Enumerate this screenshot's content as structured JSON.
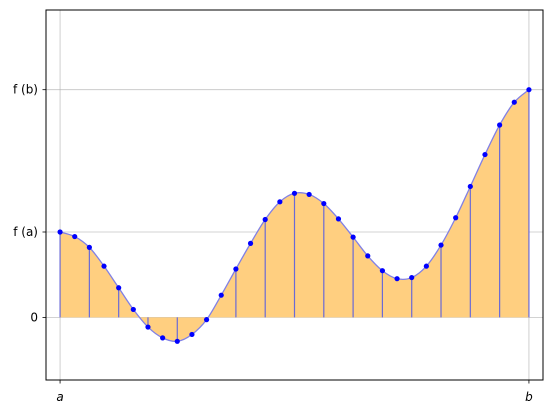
{
  "chart_data": {
    "type": "area",
    "title": "",
    "xlabel": "",
    "ylabel": "",
    "x_ticks": [
      {
        "value": 0,
        "label": "a"
      },
      {
        "value": 1,
        "label": "b"
      }
    ],
    "y_ticks": [
      {
        "value": 0,
        "label": "0"
      },
      {
        "value": 1.5,
        "label": "f (a)"
      },
      {
        "value": 4,
        "label": "f (b)"
      }
    ],
    "xlim": [
      -0.03,
      1.03
    ],
    "ylim": [
      -1.1,
      5.4
    ],
    "grid": true,
    "fill_color": "#ffcf80",
    "curve_color": "#8080e6",
    "stem_color": "#6a6ad6",
    "point_color": "#0000ff",
    "series": [
      {
        "x": [
          0.0,
          0.03125,
          0.0625,
          0.09375,
          0.125,
          0.15625,
          0.1875,
          0.21875,
          0.25,
          0.28125,
          0.3125,
          0.34375,
          0.375,
          0.40625,
          0.4375,
          0.46875,
          0.5,
          0.53125,
          0.5625,
          0.59375,
          0.625,
          0.65625,
          0.6875,
          0.71875,
          0.75,
          0.78125,
          0.8125,
          0.84375,
          0.875,
          0.90625,
          0.9375,
          0.96875,
          1.0
        ],
        "y": [
          1.5,
          1.42,
          1.23,
          0.9,
          0.52,
          0.14,
          -0.17,
          -0.36,
          -0.42,
          -0.3,
          -0.04,
          0.39,
          0.85,
          1.3,
          1.72,
          2.03,
          2.18,
          2.16,
          2.0,
          1.73,
          1.41,
          1.08,
          0.82,
          0.68,
          0.7,
          0.9,
          1.27,
          1.75,
          2.3,
          2.86,
          3.38,
          3.78,
          4.0
        ]
      }
    ]
  }
}
